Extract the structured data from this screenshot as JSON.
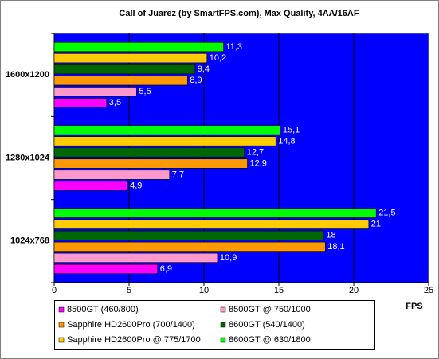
{
  "chart_data": {
    "type": "hbar",
    "title": "Call of Juarez (by SmartFPS.com), Max Quality, 4AA/16AF",
    "x_label": "FPS",
    "categories": [
      "1600x1200",
      "1280x1024",
      "1024x768"
    ],
    "series": [
      {
        "name": "8500GT (460/800)",
        "color": "#ff00ff",
        "values": [
          3.5,
          4.9,
          6.9
        ],
        "value_labels": [
          "3,5",
          "4,9",
          "6,9"
        ]
      },
      {
        "name": "8500GT @ 750/1000",
        "color": "#ff99cc",
        "values": [
          5.5,
          7.7,
          10.9
        ],
        "value_labels": [
          "5,5",
          "7,7",
          "10,9"
        ]
      },
      {
        "name": "Sapphire HD2600Pro (700/1400)",
        "color": "#ff9900",
        "values": [
          8.9,
          12.9,
          18.1
        ],
        "value_labels": [
          "8,9",
          "12,9",
          "18,1"
        ]
      },
      {
        "name": "8600GT (540/1400)",
        "color": "#006600",
        "values": [
          9.4,
          12.7,
          18
        ],
        "value_labels": [
          "9,4",
          "12,7",
          "18"
        ]
      },
      {
        "name": "Sapphire HD2600Pro @ 775/1700",
        "color": "#ffcc00",
        "values": [
          10.2,
          14.8,
          21
        ],
        "value_labels": [
          "10,2",
          "14,8",
          "21"
        ]
      },
      {
        "name": "8600GT @ 630/1800",
        "color": "#00ff00",
        "values": [
          11.3,
          15.1,
          21.5
        ],
        "value_labels": [
          "11,3",
          "15,1",
          "21,5"
        ]
      }
    ],
    "xlim": [
      0,
      25
    ],
    "xticks": [
      0,
      5,
      10,
      15,
      20,
      25
    ],
    "grid": true,
    "plot_background": "#0000ff"
  }
}
